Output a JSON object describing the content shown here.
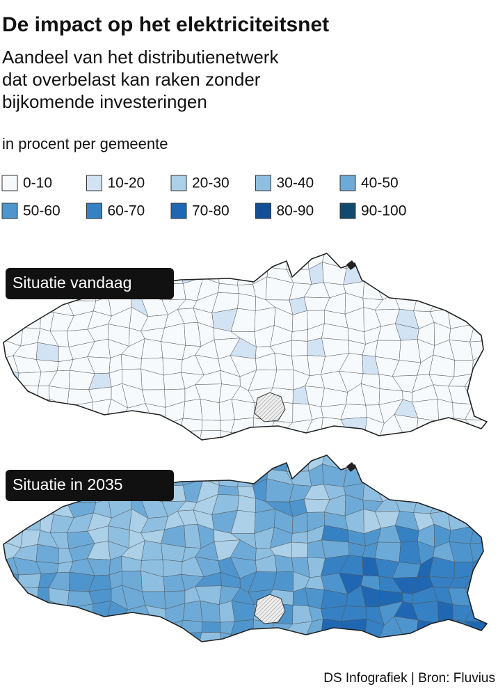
{
  "header": {
    "title": "De impact op het elektriciteitsnet",
    "subtitle": [
      "Aandeel van het distributienetwerk",
      "dat overbelast kan raken zonder",
      "bijkomende investeringen"
    ],
    "unit": "in procent per gemeente"
  },
  "legend": {
    "items": [
      {
        "label": "0-10",
        "color": "#f7fafd"
      },
      {
        "label": "10-20",
        "color": "#d2e3f4"
      },
      {
        "label": "20-30",
        "color": "#abd0e8"
      },
      {
        "label": "30-40",
        "color": "#8ebfe1"
      },
      {
        "label": "40-50",
        "color": "#6daad7"
      },
      {
        "label": "50-60",
        "color": "#4e95cd"
      },
      {
        "label": "60-70",
        "color": "#3581c4"
      },
      {
        "label": "70-80",
        "color": "#1f67b2"
      },
      {
        "label": "80-90",
        "color": "#134f96"
      },
      {
        "label": "90-100",
        "color": "#0f4a6e"
      }
    ]
  },
  "maps": [
    {
      "label": "Situatie vandaag"
    },
    {
      "label": "Situatie in 2035"
    }
  ],
  "source": "DS Infografiek | Bron: Fluvius"
}
